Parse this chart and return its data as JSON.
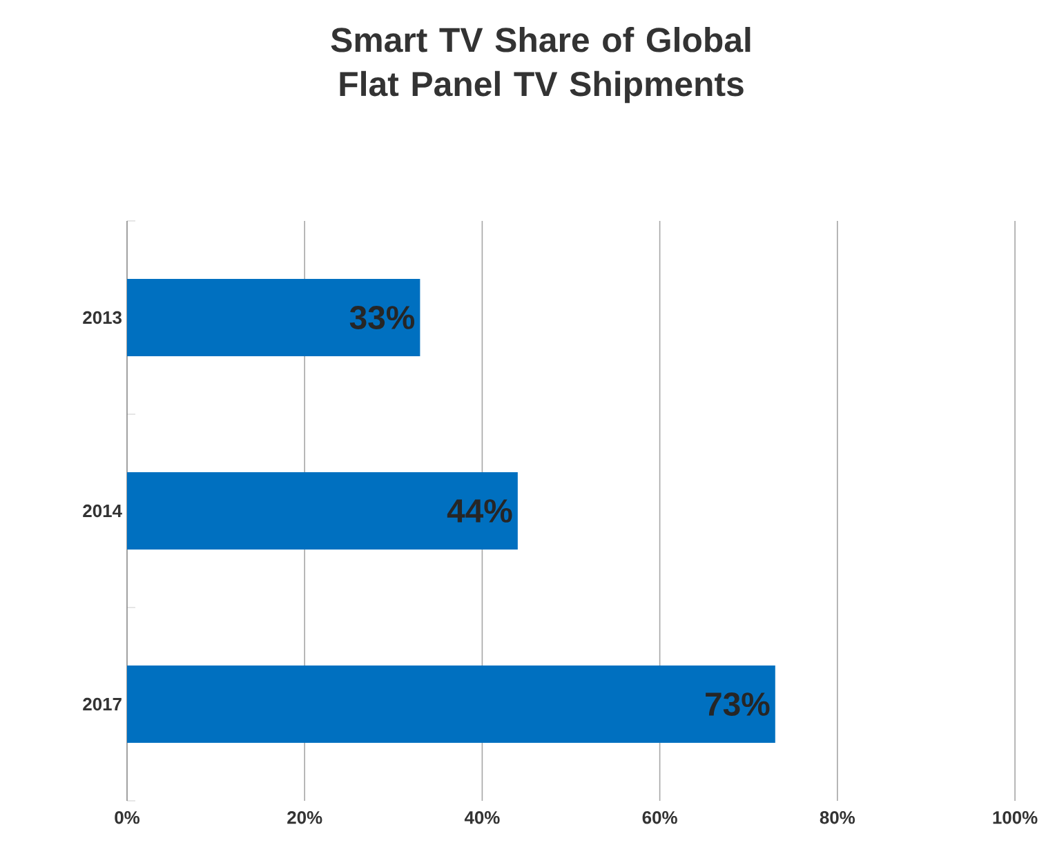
{
  "chart_data": {
    "type": "bar",
    "orientation": "horizontal",
    "title": "Smart TV Share of Global Flat Panel TV Shipments",
    "categories": [
      "2013",
      "2014",
      "2017"
    ],
    "values": [
      33,
      44,
      73
    ],
    "value_labels": [
      "33%",
      "44%",
      "73%"
    ],
    "color": "#0070c0",
    "xlim": [
      0,
      100
    ],
    "xticks": [
      {
        "value": 0,
        "label": "0%"
      },
      {
        "value": 20,
        "label": "20%"
      },
      {
        "value": 40,
        "label": "40%"
      },
      {
        "value": 60,
        "label": "60%"
      },
      {
        "value": 80,
        "label": "80%"
      },
      {
        "value": 100,
        "label": "100%"
      }
    ],
    "grid": "x"
  }
}
